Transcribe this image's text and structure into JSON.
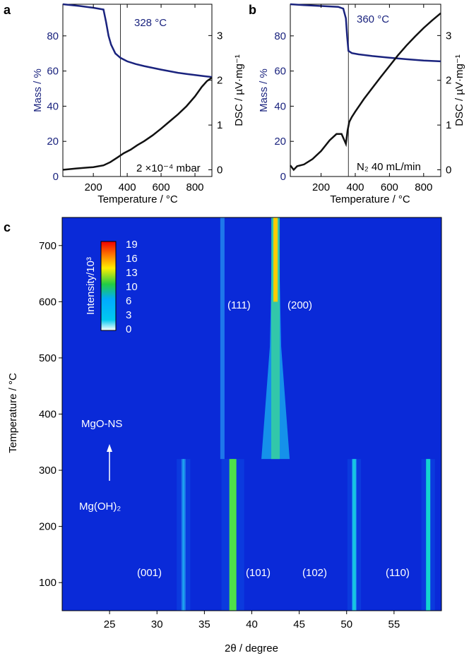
{
  "chart_data": [
    {
      "panel": "a",
      "type": "line",
      "xlabel": "Temperature / °C",
      "ylabel_left": "Mass / %",
      "ylabel_right": "DSC / µV·mg⁻¹",
      "xlim": [
        20,
        900
      ],
      "ylim_left": [
        0,
        98
      ],
      "ylim_right": [
        -0.15,
        3.7
      ],
      "x_ticks": [
        200,
        400,
        600,
        800
      ],
      "y_ticks_left": [
        0,
        20,
        40,
        60,
        80
      ],
      "y_ticks_right": [
        0,
        1,
        2,
        3
      ],
      "vline": 360,
      "annotation_temp": "328 °C",
      "annotation_condition": "2 ×10⁻⁴ mbar",
      "series": [
        {
          "name": "Mass",
          "axis": "left",
          "color": "#1a237e",
          "x": [
            20,
            120,
            200,
            260,
            275,
            290,
            305,
            330,
            360,
            400,
            450,
            500,
            550,
            600,
            650,
            700,
            750,
            800,
            850,
            900
          ],
          "y": [
            98,
            97,
            96,
            95,
            88,
            80,
            75,
            70,
            67.5,
            65.5,
            64,
            62.8,
            61.8,
            60.8,
            59.9,
            59,
            58.3,
            57.7,
            57.1,
            56.6
          ]
        },
        {
          "name": "DSC",
          "axis": "right",
          "color": "#111111",
          "x": [
            20,
            100,
            200,
            260,
            300,
            340,
            380,
            420,
            460,
            500,
            550,
            600,
            650,
            700,
            750,
            800,
            840,
            870,
            900
          ],
          "y": [
            0.0,
            0.03,
            0.06,
            0.1,
            0.17,
            0.27,
            0.37,
            0.45,
            0.55,
            0.64,
            0.77,
            0.92,
            1.08,
            1.24,
            1.42,
            1.64,
            1.85,
            1.98,
            2.06
          ]
        }
      ]
    },
    {
      "panel": "b",
      "type": "line",
      "xlabel": "Temperature / °C",
      "ylabel_left": "Mass / %",
      "ylabel_right": "DSC / µV·mg⁻¹",
      "xlim": [
        20,
        900
      ],
      "ylim_left": [
        0,
        98
      ],
      "ylim_right": [
        -0.15,
        3.7
      ],
      "x_ticks": [
        200,
        400,
        600,
        800
      ],
      "y_ticks_left": [
        0,
        20,
        40,
        60,
        80
      ],
      "y_ticks_right": [
        0,
        1,
        2,
        3
      ],
      "vline": 360,
      "annotation_temp": "360 °C",
      "annotation_condition": "N₂ 40 mL/min",
      "series": [
        {
          "name": "Mass",
          "axis": "left",
          "color": "#1a237e",
          "x": [
            20,
            100,
            200,
            300,
            330,
            345,
            352,
            360,
            380,
            420,
            500,
            600,
            700,
            800,
            900
          ],
          "y": [
            98,
            97.5,
            97,
            96.5,
            95.5,
            90,
            80,
            71.5,
            70.2,
            69.5,
            68.5,
            67.6,
            66.7,
            66,
            65.5
          ],
          "y_note": "mass in %"
        },
        {
          "name": "DSC",
          "axis": "right",
          "color": "#111111",
          "x": [
            20,
            40,
            60,
            100,
            150,
            200,
            250,
            290,
            320,
            345,
            355,
            365,
            380,
            400,
            450,
            500,
            550,
            600,
            650,
            700,
            750,
            800,
            850,
            900
          ],
          "y": [
            0.1,
            0.0,
            0.08,
            0.12,
            0.24,
            0.42,
            0.66,
            0.8,
            0.8,
            0.58,
            0.88,
            1.07,
            1.18,
            1.3,
            1.58,
            1.83,
            2.08,
            2.32,
            2.56,
            2.78,
            2.98,
            3.17,
            3.34,
            3.5
          ]
        }
      ]
    },
    {
      "panel": "c",
      "type": "heatmap",
      "xlabel": "2θ / degree",
      "ylabel": "Temperature / °C",
      "xlim": [
        20,
        60
      ],
      "ylim": [
        50,
        750
      ],
      "x_ticks": [
        25,
        30,
        35,
        40,
        45,
        50,
        55
      ],
      "y_ticks": [
        100,
        200,
        300,
        400,
        500,
        600,
        700
      ],
      "colorbar_title": "Intensity/10³",
      "colorbar_ticks": [
        19,
        16,
        13,
        10,
        6,
        3,
        0
      ],
      "transition_temp": 320,
      "phase_low": "Mg(OH)₂",
      "phase_high": "MgO-NS",
      "peaks_low": [
        {
          "label": "(001)",
          "two_theta": 32.8,
          "intensity": 2
        },
        {
          "label": "(101)",
          "two_theta": 38.0,
          "intensity": 10
        },
        {
          "label": "(102)",
          "two_theta": 50.8,
          "intensity": 5
        },
        {
          "label": "(110)",
          "two_theta": 58.6,
          "intensity": 6
        }
      ],
      "peaks_high": [
        {
          "label": "(111)",
          "two_theta": 36.9,
          "intensity": 2
        },
        {
          "label": "(200)",
          "two_theta": 42.5,
          "intensity": 15
        }
      ]
    }
  ]
}
